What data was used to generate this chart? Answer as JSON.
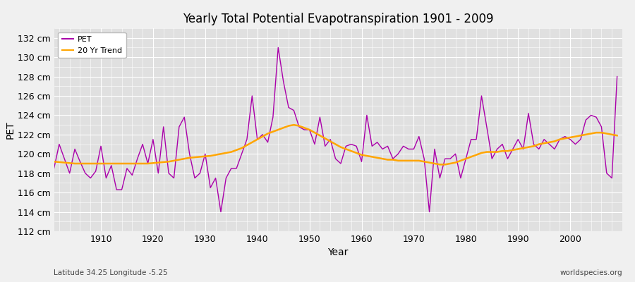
{
  "title": "Yearly Total Potential Evapotranspiration 1901 - 2009",
  "xlabel": "Year",
  "ylabel": "PET",
  "subtitle": "Latitude 34.25 Longitude -5.25",
  "watermark": "worldspecies.org",
  "bg_color": "#e0e0e0",
  "fig_color": "#f0f0f0",
  "pet_color": "#aa00aa",
  "trend_color": "#FFA500",
  "ylim": [
    112,
    133
  ],
  "yticks": [
    112,
    114,
    116,
    118,
    120,
    122,
    124,
    126,
    128,
    130,
    132
  ],
  "xlim": [
    1901,
    2010
  ],
  "xticks": [
    1910,
    1920,
    1930,
    1940,
    1950,
    1960,
    1970,
    1980,
    1990,
    2000
  ],
  "years": [
    1901,
    1902,
    1903,
    1904,
    1905,
    1906,
    1907,
    1908,
    1909,
    1910,
    1911,
    1912,
    1913,
    1914,
    1915,
    1916,
    1917,
    1918,
    1919,
    1920,
    1921,
    1922,
    1923,
    1924,
    1925,
    1926,
    1927,
    1928,
    1929,
    1930,
    1931,
    1932,
    1933,
    1934,
    1935,
    1936,
    1937,
    1938,
    1939,
    1940,
    1941,
    1942,
    1943,
    1944,
    1945,
    1946,
    1947,
    1948,
    1949,
    1950,
    1951,
    1952,
    1953,
    1954,
    1955,
    1956,
    1957,
    1958,
    1959,
    1960,
    1961,
    1962,
    1963,
    1964,
    1965,
    1966,
    1967,
    1968,
    1969,
    1970,
    1971,
    1972,
    1973,
    1974,
    1975,
    1976,
    1977,
    1978,
    1979,
    1980,
    1981,
    1982,
    1983,
    1984,
    1985,
    1986,
    1987,
    1988,
    1989,
    1990,
    1991,
    1992,
    1993,
    1994,
    1995,
    1996,
    1997,
    1998,
    1999,
    2000,
    2001,
    2002,
    2003,
    2004,
    2005,
    2006,
    2007,
    2008,
    2009
  ],
  "pet": [
    118.5,
    121.0,
    119.5,
    118.0,
    120.5,
    119.2,
    118.0,
    117.5,
    118.2,
    120.8,
    117.5,
    118.8,
    116.3,
    116.3,
    118.5,
    117.8,
    119.5,
    121.0,
    119.0,
    121.5,
    118.0,
    122.8,
    118.0,
    117.5,
    122.8,
    123.8,
    120.0,
    117.5,
    118.0,
    120.0,
    116.5,
    117.5,
    114.0,
    117.5,
    118.5,
    118.5,
    120.0,
    121.5,
    126.0,
    121.5,
    122.0,
    121.2,
    123.8,
    131.0,
    127.5,
    124.8,
    124.5,
    122.8,
    122.5,
    122.5,
    121.0,
    123.8,
    120.8,
    121.5,
    119.5,
    119.0,
    120.8,
    121.0,
    120.8,
    119.2,
    124.0,
    120.8,
    121.2,
    120.5,
    120.8,
    119.5,
    120.0,
    120.8,
    120.5,
    120.5,
    121.8,
    119.5,
    114.0,
    120.5,
    117.5,
    119.5,
    119.5,
    120.0,
    117.5,
    119.5,
    121.5,
    121.5,
    126.0,
    122.8,
    119.5,
    120.5,
    121.0,
    119.5,
    120.5,
    121.5,
    120.5,
    124.2,
    121.0,
    120.5,
    121.5,
    121.0,
    120.5,
    121.5,
    121.8,
    121.5,
    121.0,
    121.5,
    123.5,
    124.0,
    123.8,
    122.8,
    118.0,
    117.5,
    128.0
  ],
  "trend": [
    119.2,
    119.15,
    119.1,
    119.05,
    119.0,
    119.0,
    119.0,
    119.0,
    119.0,
    119.0,
    119.0,
    119.0,
    119.0,
    119.0,
    119.0,
    119.0,
    119.0,
    119.0,
    119.0,
    119.05,
    119.1,
    119.15,
    119.2,
    119.3,
    119.4,
    119.5,
    119.6,
    119.65,
    119.7,
    119.75,
    119.8,
    119.9,
    120.0,
    120.1,
    120.2,
    120.4,
    120.6,
    120.9,
    121.2,
    121.5,
    121.8,
    122.1,
    122.3,
    122.5,
    122.7,
    122.9,
    123.0,
    122.9,
    122.7,
    122.5,
    122.2,
    121.9,
    121.6,
    121.3,
    121.0,
    120.7,
    120.5,
    120.3,
    120.1,
    119.9,
    119.8,
    119.7,
    119.6,
    119.5,
    119.4,
    119.4,
    119.3,
    119.3,
    119.3,
    119.3,
    119.3,
    119.2,
    119.1,
    119.0,
    118.9,
    118.9,
    119.0,
    119.1,
    119.3,
    119.5,
    119.7,
    119.9,
    120.1,
    120.2,
    120.2,
    120.2,
    120.3,
    120.3,
    120.4,
    120.5,
    120.6,
    120.7,
    120.8,
    121.0,
    121.1,
    121.2,
    121.3,
    121.5,
    121.6,
    121.7,
    121.8,
    121.9,
    122.0,
    122.1,
    122.2,
    122.2,
    122.1,
    122.0,
    121.9
  ]
}
